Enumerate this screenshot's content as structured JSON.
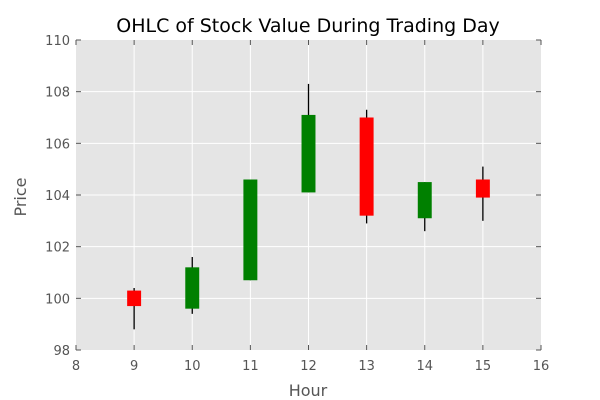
{
  "chart_data": {
    "type": "candlestick",
    "title": "OHLC of Stock Value During Trading Day",
    "xlabel": "Hour",
    "ylabel": "Price",
    "xlim": [
      8,
      16
    ],
    "ylim": [
      98,
      110
    ],
    "xticks": [
      8,
      9,
      10,
      11,
      12,
      13,
      14,
      15,
      16
    ],
    "yticks": [
      98,
      100,
      102,
      104,
      106,
      108,
      110
    ],
    "grid": true,
    "colors": {
      "background": "#e5e5e5",
      "grid": "#ffffff",
      "up": "#008000",
      "down": "#ff0000",
      "wick": "#000000",
      "tick_label": "#555555"
    },
    "candles": [
      {
        "x": 9,
        "open": 100.3,
        "high": 100.4,
        "low": 98.8,
        "close": 99.7
      },
      {
        "x": 10,
        "open": 99.6,
        "high": 101.6,
        "low": 99.4,
        "close": 101.2
      },
      {
        "x": 11,
        "open": 100.7,
        "high": 104.6,
        "low": 100.7,
        "close": 104.6
      },
      {
        "x": 12,
        "open": 104.1,
        "high": 108.3,
        "low": 104.1,
        "close": 107.1
      },
      {
        "x": 13,
        "open": 107.0,
        "high": 107.3,
        "low": 102.9,
        "close": 103.2
      },
      {
        "x": 14,
        "open": 103.1,
        "high": 104.5,
        "low": 102.6,
        "close": 104.5
      },
      {
        "x": 15,
        "open": 104.6,
        "high": 105.1,
        "low": 103.0,
        "close": 103.9
      }
    ]
  }
}
